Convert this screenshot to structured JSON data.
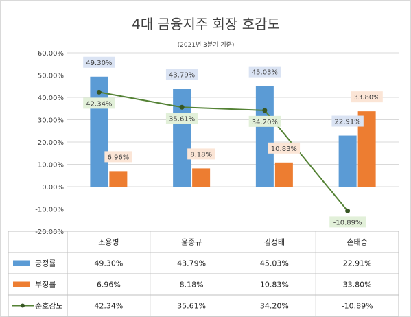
{
  "chart_data": {
    "type": "bar",
    "title": "4대 금융지주 회장 호감도",
    "subtitle": "(2021년 3분기 기준)",
    "categories": [
      "조용병",
      "윤종규",
      "김정태",
      "손태승"
    ],
    "ylim": [
      -20,
      60
    ],
    "yticks": [
      "60.00%",
      "50.00%",
      "40.00%",
      "30.00%",
      "20.00%",
      "10.00%",
      "0.00%",
      "-10.00%",
      "-20.00%"
    ],
    "grid": true,
    "legend": "data-table",
    "series": [
      {
        "name": "긍정률",
        "kind": "bar",
        "color": "#5b9bd5",
        "labelBg": "#dae3f3",
        "values": [
          49.3,
          43.79,
          45.03,
          22.91
        ],
        "labels": [
          "49.30%",
          "43.79%",
          "45.03%",
          "22.91%"
        ]
      },
      {
        "name": "부정률",
        "kind": "bar",
        "color": "#ed7d31",
        "labelBg": "#fbe5d6",
        "values": [
          6.96,
          8.18,
          10.83,
          33.8
        ],
        "labels": [
          "6.96%",
          "8.18%",
          "10.83%",
          "33.80%"
        ]
      },
      {
        "name": "순호감도",
        "kind": "line",
        "color": "#548235",
        "labelBg": "#e2f0d9",
        "values": [
          42.34,
          35.61,
          34.2,
          -10.89
        ],
        "labels": [
          "42.34%",
          "35.61%",
          "34.20%",
          "-10.89%"
        ]
      }
    ]
  }
}
